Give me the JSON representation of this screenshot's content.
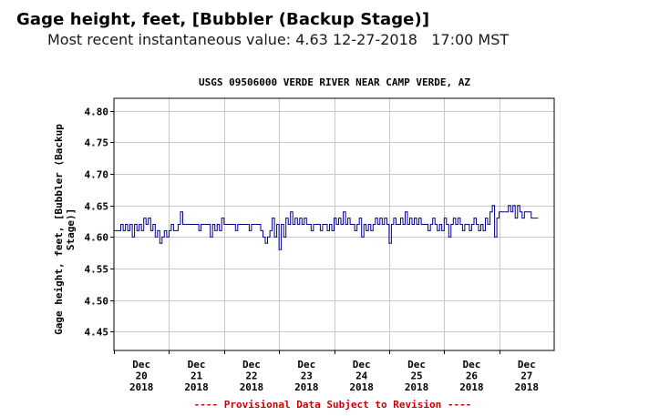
{
  "header": {
    "title": "Gage height, feet, [Bubbler (Backup Stage)]",
    "subtitle_prefix": "Most recent instantaneous value: ",
    "latest_value": "4.63",
    "latest_date": "12-27-2018",
    "latest_time": "17:00 MST"
  },
  "footer": {
    "provisional_note": "---- Provisional Data Subject to Revision ----",
    "color": "#cc0000"
  },
  "chart_data": {
    "type": "line",
    "title": "USGS 09506000 VERDE RIVER NEAR CAMP VERDE, AZ",
    "ylabel_line1": "Gage height, feet, [Bubbler (Backup",
    "ylabel_line2": "Stage)]",
    "ylim": [
      4.42,
      4.82
    ],
    "yticks": [
      4.45,
      4.5,
      4.55,
      4.6,
      4.65,
      4.7,
      4.75,
      4.8
    ],
    "ytick_labels": [
      "4.45",
      "4.50",
      "4.55",
      "4.60",
      "4.65",
      "4.70",
      "4.75",
      "4.80"
    ],
    "xlim": [
      "2018-12-20T00:00",
      "2018-12-28T00:00"
    ],
    "xticks": [
      {
        "month": "Dec",
        "day": "20",
        "year": "2018"
      },
      {
        "month": "Dec",
        "day": "21",
        "year": "2018"
      },
      {
        "month": "Dec",
        "day": "22",
        "year": "2018"
      },
      {
        "month": "Dec",
        "day": "23",
        "year": "2018"
      },
      {
        "month": "Dec",
        "day": "24",
        "year": "2018"
      },
      {
        "month": "Dec",
        "day": "25",
        "year": "2018"
      },
      {
        "month": "Dec",
        "day": "26",
        "year": "2018"
      },
      {
        "month": "Dec",
        "day": "27",
        "year": "2018"
      }
    ],
    "grid": true,
    "line_color": "#00008b",
    "series": [
      {
        "points": [
          [
            "2018-12-20T00:00",
            4.61
          ],
          [
            "2018-12-20T01:00",
            4.61
          ],
          [
            "2018-12-20T02:00",
            4.61
          ],
          [
            "2018-12-20T03:00",
            4.62
          ],
          [
            "2018-12-20T04:00",
            4.61
          ],
          [
            "2018-12-20T05:00",
            4.62
          ],
          [
            "2018-12-20T06:00",
            4.61
          ],
          [
            "2018-12-20T07:00",
            4.62
          ],
          [
            "2018-12-20T08:00",
            4.6
          ],
          [
            "2018-12-20T09:00",
            4.62
          ],
          [
            "2018-12-20T10:00",
            4.61
          ],
          [
            "2018-12-20T11:00",
            4.62
          ],
          [
            "2018-12-20T12:00",
            4.61
          ],
          [
            "2018-12-20T13:00",
            4.63
          ],
          [
            "2018-12-20T14:00",
            4.62
          ],
          [
            "2018-12-20T15:00",
            4.63
          ],
          [
            "2018-12-20T16:00",
            4.61
          ],
          [
            "2018-12-20T17:00",
            4.62
          ],
          [
            "2018-12-20T18:00",
            4.6
          ],
          [
            "2018-12-20T19:00",
            4.61
          ],
          [
            "2018-12-20T20:00",
            4.59
          ],
          [
            "2018-12-20T21:00",
            4.6
          ],
          [
            "2018-12-20T22:00",
            4.61
          ],
          [
            "2018-12-20T23:00",
            4.6
          ],
          [
            "2018-12-21T00:00",
            4.61
          ],
          [
            "2018-12-21T01:00",
            4.62
          ],
          [
            "2018-12-21T02:00",
            4.61
          ],
          [
            "2018-12-21T03:00",
            4.61
          ],
          [
            "2018-12-21T04:00",
            4.62
          ],
          [
            "2018-12-21T05:00",
            4.64
          ],
          [
            "2018-12-21T06:00",
            4.62
          ],
          [
            "2018-12-21T07:00",
            4.62
          ],
          [
            "2018-12-21T08:00",
            4.62
          ],
          [
            "2018-12-21T09:00",
            4.62
          ],
          [
            "2018-12-21T10:00",
            4.62
          ],
          [
            "2018-12-21T11:00",
            4.62
          ],
          [
            "2018-12-21T12:00",
            4.62
          ],
          [
            "2018-12-21T13:00",
            4.61
          ],
          [
            "2018-12-21T14:00",
            4.62
          ],
          [
            "2018-12-21T15:00",
            4.62
          ],
          [
            "2018-12-21T16:00",
            4.62
          ],
          [
            "2018-12-21T17:00",
            4.62
          ],
          [
            "2018-12-21T18:00",
            4.6
          ],
          [
            "2018-12-21T19:00",
            4.62
          ],
          [
            "2018-12-21T20:00",
            4.61
          ],
          [
            "2018-12-21T21:00",
            4.62
          ],
          [
            "2018-12-21T22:00",
            4.61
          ],
          [
            "2018-12-21T23:00",
            4.63
          ],
          [
            "2018-12-22T00:00",
            4.62
          ],
          [
            "2018-12-22T01:00",
            4.62
          ],
          [
            "2018-12-22T02:00",
            4.62
          ],
          [
            "2018-12-22T03:00",
            4.62
          ],
          [
            "2018-12-22T04:00",
            4.62
          ],
          [
            "2018-12-22T05:00",
            4.61
          ],
          [
            "2018-12-22T06:00",
            4.62
          ],
          [
            "2018-12-22T07:00",
            4.62
          ],
          [
            "2018-12-22T08:00",
            4.62
          ],
          [
            "2018-12-22T09:00",
            4.62
          ],
          [
            "2018-12-22T10:00",
            4.62
          ],
          [
            "2018-12-22T11:00",
            4.61
          ],
          [
            "2018-12-22T12:00",
            4.62
          ],
          [
            "2018-12-22T13:00",
            4.62
          ],
          [
            "2018-12-22T14:00",
            4.62
          ],
          [
            "2018-12-22T15:00",
            4.62
          ],
          [
            "2018-12-22T16:00",
            4.61
          ],
          [
            "2018-12-22T17:00",
            4.6
          ],
          [
            "2018-12-22T18:00",
            4.59
          ],
          [
            "2018-12-22T19:00",
            4.6
          ],
          [
            "2018-12-22T20:00",
            4.61
          ],
          [
            "2018-12-22T21:00",
            4.63
          ],
          [
            "2018-12-22T22:00",
            4.6
          ],
          [
            "2018-12-22T23:00",
            4.62
          ],
          [
            "2018-12-23T00:00",
            4.58
          ],
          [
            "2018-12-23T01:00",
            4.62
          ],
          [
            "2018-12-23T02:00",
            4.6
          ],
          [
            "2018-12-23T03:00",
            4.63
          ],
          [
            "2018-12-23T04:00",
            4.62
          ],
          [
            "2018-12-23T05:00",
            4.64
          ],
          [
            "2018-12-23T06:00",
            4.62
          ],
          [
            "2018-12-23T07:00",
            4.63
          ],
          [
            "2018-12-23T08:00",
            4.62
          ],
          [
            "2018-12-23T09:00",
            4.63
          ],
          [
            "2018-12-23T10:00",
            4.62
          ],
          [
            "2018-12-23T11:00",
            4.63
          ],
          [
            "2018-12-23T12:00",
            4.62
          ],
          [
            "2018-12-23T13:00",
            4.62
          ],
          [
            "2018-12-23T14:00",
            4.61
          ],
          [
            "2018-12-23T15:00",
            4.62
          ],
          [
            "2018-12-23T16:00",
            4.62
          ],
          [
            "2018-12-23T17:00",
            4.62
          ],
          [
            "2018-12-23T18:00",
            4.61
          ],
          [
            "2018-12-23T19:00",
            4.62
          ],
          [
            "2018-12-23T20:00",
            4.62
          ],
          [
            "2018-12-23T21:00",
            4.61
          ],
          [
            "2018-12-23T22:00",
            4.62
          ],
          [
            "2018-12-23T23:00",
            4.61
          ],
          [
            "2018-12-24T00:00",
            4.63
          ],
          [
            "2018-12-24T01:00",
            4.62
          ],
          [
            "2018-12-24T02:00",
            4.63
          ],
          [
            "2018-12-24T03:00",
            4.62
          ],
          [
            "2018-12-24T04:00",
            4.64
          ],
          [
            "2018-12-24T05:00",
            4.62
          ],
          [
            "2018-12-24T06:00",
            4.63
          ],
          [
            "2018-12-24T07:00",
            4.62
          ],
          [
            "2018-12-24T08:00",
            4.62
          ],
          [
            "2018-12-24T09:00",
            4.61
          ],
          [
            "2018-12-24T10:00",
            4.62
          ],
          [
            "2018-12-24T11:00",
            4.63
          ],
          [
            "2018-12-24T12:00",
            4.6
          ],
          [
            "2018-12-24T13:00",
            4.62
          ],
          [
            "2018-12-24T14:00",
            4.61
          ],
          [
            "2018-12-24T15:00",
            4.62
          ],
          [
            "2018-12-24T16:00",
            4.61
          ],
          [
            "2018-12-24T17:00",
            4.62
          ],
          [
            "2018-12-24T18:00",
            4.63
          ],
          [
            "2018-12-24T19:00",
            4.62
          ],
          [
            "2018-12-24T20:00",
            4.63
          ],
          [
            "2018-12-24T21:00",
            4.62
          ],
          [
            "2018-12-24T22:00",
            4.63
          ],
          [
            "2018-12-24T23:00",
            4.62
          ],
          [
            "2018-12-25T00:00",
            4.59
          ],
          [
            "2018-12-25T01:00",
            4.62
          ],
          [
            "2018-12-25T02:00",
            4.63
          ],
          [
            "2018-12-25T03:00",
            4.62
          ],
          [
            "2018-12-25T04:00",
            4.62
          ],
          [
            "2018-12-25T05:00",
            4.63
          ],
          [
            "2018-12-25T06:00",
            4.62
          ],
          [
            "2018-12-25T07:00",
            4.64
          ],
          [
            "2018-12-25T08:00",
            4.62
          ],
          [
            "2018-12-25T09:00",
            4.63
          ],
          [
            "2018-12-25T10:00",
            4.62
          ],
          [
            "2018-12-25T11:00",
            4.63
          ],
          [
            "2018-12-25T12:00",
            4.62
          ],
          [
            "2018-12-25T13:00",
            4.63
          ],
          [
            "2018-12-25T14:00",
            4.62
          ],
          [
            "2018-12-25T15:00",
            4.62
          ],
          [
            "2018-12-25T16:00",
            4.62
          ],
          [
            "2018-12-25T17:00",
            4.61
          ],
          [
            "2018-12-25T18:00",
            4.62
          ],
          [
            "2018-12-25T19:00",
            4.63
          ],
          [
            "2018-12-25T20:00",
            4.62
          ],
          [
            "2018-12-25T21:00",
            4.61
          ],
          [
            "2018-12-25T22:00",
            4.62
          ],
          [
            "2018-12-25T23:00",
            4.61
          ],
          [
            "2018-12-26T00:00",
            4.63
          ],
          [
            "2018-12-26T01:00",
            4.62
          ],
          [
            "2018-12-26T02:00",
            4.6
          ],
          [
            "2018-12-26T03:00",
            4.62
          ],
          [
            "2018-12-26T04:00",
            4.63
          ],
          [
            "2018-12-26T05:00",
            4.62
          ],
          [
            "2018-12-26T06:00",
            4.63
          ],
          [
            "2018-12-26T07:00",
            4.62
          ],
          [
            "2018-12-26T08:00",
            4.61
          ],
          [
            "2018-12-26T09:00",
            4.62
          ],
          [
            "2018-12-26T10:00",
            4.62
          ],
          [
            "2018-12-26T11:00",
            4.61
          ],
          [
            "2018-12-26T12:00",
            4.62
          ],
          [
            "2018-12-26T13:00",
            4.63
          ],
          [
            "2018-12-26T14:00",
            4.62
          ],
          [
            "2018-12-26T15:00",
            4.61
          ],
          [
            "2018-12-26T16:00",
            4.62
          ],
          [
            "2018-12-26T17:00",
            4.61
          ],
          [
            "2018-12-26T18:00",
            4.63
          ],
          [
            "2018-12-26T19:00",
            4.62
          ],
          [
            "2018-12-26T20:00",
            4.64
          ],
          [
            "2018-12-26T21:00",
            4.65
          ],
          [
            "2018-12-26T22:00",
            4.6
          ],
          [
            "2018-12-26T23:00",
            4.63
          ],
          [
            "2018-12-27T00:00",
            4.64
          ],
          [
            "2018-12-27T01:00",
            4.64
          ],
          [
            "2018-12-27T02:00",
            4.64
          ],
          [
            "2018-12-27T03:00",
            4.64
          ],
          [
            "2018-12-27T04:00",
            4.65
          ],
          [
            "2018-12-27T05:00",
            4.64
          ],
          [
            "2018-12-27T06:00",
            4.65
          ],
          [
            "2018-12-27T07:00",
            4.63
          ],
          [
            "2018-12-27T08:00",
            4.65
          ],
          [
            "2018-12-27T09:00",
            4.64
          ],
          [
            "2018-12-27T10:00",
            4.63
          ],
          [
            "2018-12-27T11:00",
            4.64
          ],
          [
            "2018-12-27T12:00",
            4.64
          ],
          [
            "2018-12-27T13:00",
            4.64
          ],
          [
            "2018-12-27T14:00",
            4.63
          ],
          [
            "2018-12-27T15:00",
            4.63
          ],
          [
            "2018-12-27T16:00",
            4.63
          ],
          [
            "2018-12-27T17:00",
            4.63
          ]
        ]
      }
    ]
  }
}
